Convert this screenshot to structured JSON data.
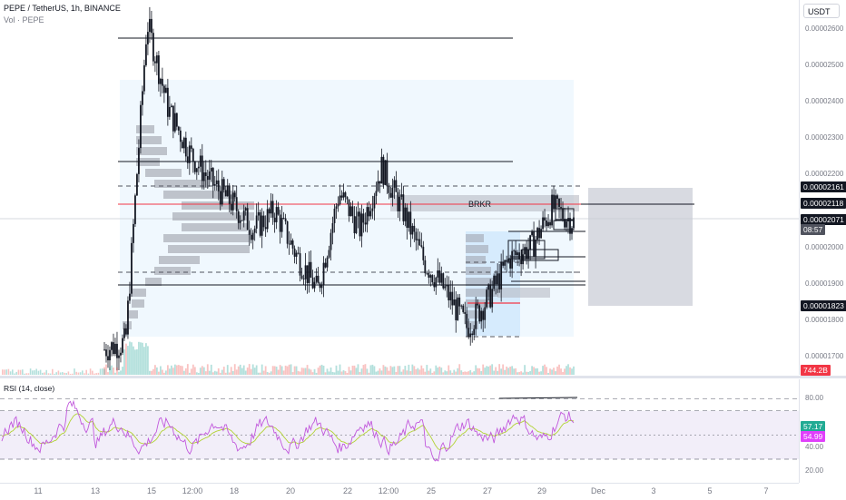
{
  "legend": {
    "symbol": "PEPE / TetherUS, 1h, BINANCE",
    "volume": "Vol · PEPE"
  },
  "currency_button": "USDT",
  "price_axis": {
    "ticks": [
      "0.00002600",
      "0.00002500",
      "0.00002400",
      "0.00002300",
      "0.00002200",
      "0.00002000",
      "0.00001900",
      "0.00001800",
      "0.00001700"
    ],
    "tags": [
      {
        "label": "0.00002161",
        "color": "#131722"
      },
      {
        "label": "0.00002118",
        "color": "#131722"
      },
      {
        "label": "0.00002071",
        "color": "#131722"
      },
      {
        "label": "08:57",
        "color": "#50535e"
      },
      {
        "label": "0.00001823",
        "color": "#131722"
      },
      {
        "label": "744.2B",
        "color": "#f23645"
      }
    ]
  },
  "drawing_labels": {
    "brkr": "BRKR"
  },
  "rsi": {
    "legend": "RSI (14, close)",
    "ticks": [
      "80.00",
      "40.00",
      "20.00"
    ],
    "value_tag": "57.17",
    "ma_tag": "54.99",
    "value_color": "#22ab94",
    "ma_color": "#e040fb"
  },
  "time_axis": {
    "labels": [
      "11",
      "13",
      "15",
      "12:00",
      "18",
      "20",
      "22",
      "12:00",
      "25",
      "27",
      "29",
      "Dec",
      "3",
      "5",
      "7"
    ]
  },
  "chart_data": {
    "type": "candlestick",
    "symbol": "PEPE / TetherUS",
    "timeframe": "1h",
    "exchange": "BINANCE",
    "y_range": [
      1.65e-05,
      2.68e-05
    ],
    "last_price": 2.071e-05,
    "levels": [
      2.6e-05,
      2.24e-05,
      2.161e-05,
      2.118e-05,
      2.071e-05,
      1.88e-05,
      1.823e-05
    ],
    "close_path": [
      {
        "x": "11",
        "y": 1.72e-05
      },
      {
        "x": "13",
        "y": 1.74e-05
      },
      {
        "x": "13",
        "y": 2.62e-05
      },
      {
        "x": "13",
        "y": 2.38e-05
      },
      {
        "x": "15",
        "y": 2.26e-05
      },
      {
        "x": "15",
        "y": 2.18e-05
      },
      {
        "x": "12:00",
        "y": 2.12e-05
      },
      {
        "x": "18",
        "y": 2.05e-05
      },
      {
        "x": "18",
        "y": 2.1e-05
      },
      {
        "x": "20",
        "y": 1.98e-05
      },
      {
        "x": "20",
        "y": 1.88e-05
      },
      {
        "x": "22",
        "y": 2.15e-05
      },
      {
        "x": "22",
        "y": 2.05e-05
      },
      {
        "x": "12:00",
        "y": 2.22e-05
      },
      {
        "x": "12:00",
        "y": 2.1e-05
      },
      {
        "x": "25",
        "y": 1.96e-05
      },
      {
        "x": "25",
        "y": 1.88e-05
      },
      {
        "x": "27",
        "y": 1.78e-05
      },
      {
        "x": "27",
        "y": 1.86e-05
      },
      {
        "x": "27",
        "y": 1.97e-05
      },
      {
        "x": "29",
        "y": 2e-05
      },
      {
        "x": "29",
        "y": 2.11e-05
      },
      {
        "x": "29",
        "y": 2.07e-05
      }
    ],
    "rsi_series": {
      "name": "RSI (14, close)",
      "last": 57.17,
      "ma_last": 54.99,
      "bands": [
        70,
        30
      ]
    }
  }
}
